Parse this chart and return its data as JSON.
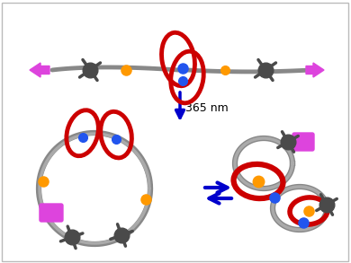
{
  "bg_color": "#ffffff",
  "border_color": "#bbbbbb",
  "chain_color": "#888888",
  "ring_color": "#cc0000",
  "stopper_color": "#4a4a4a",
  "orange_dot_color": "#ff9900",
  "blue_dot_color": "#2255ee",
  "pink_stopper_color": "#dd44dd",
  "arrow_color": "#0000cc",
  "text_365": "365 nm",
  "text_fontsize": 9,
  "figsize": [
    3.9,
    2.93
  ],
  "dpi": 100
}
